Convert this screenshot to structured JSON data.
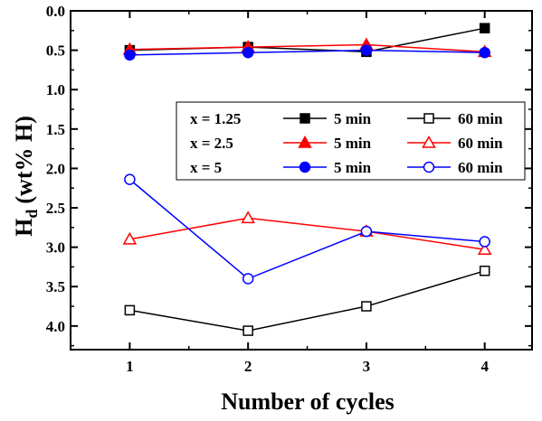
{
  "chart_data": {
    "type": "line",
    "title": "",
    "xlabel": "Number of cycles",
    "ylabel_main": "H",
    "ylabel_sub": "d",
    "ylabel_rest": "(wt% H)",
    "xlim": [
      0.5,
      4.4
    ],
    "ylim": [
      0.0,
      4.3
    ],
    "y_inverted": true,
    "x_ticks": [
      1,
      2,
      3,
      4
    ],
    "x_tick_labels": [
      "1",
      "2",
      "3",
      "4"
    ],
    "y_ticks": [
      0.0,
      0.5,
      1.0,
      1.5,
      2.0,
      2.5,
      3.0,
      3.5,
      4.0
    ],
    "y_tick_labels": [
      "0.0",
      "0.5",
      "1.0",
      "1.5",
      "2.0",
      "2.5",
      "3.0",
      "3.5",
      "4.0"
    ],
    "grid": false,
    "legend_position": "center-right",
    "series": [
      {
        "x_label": "x = 1.25",
        "name": "5 min",
        "color": "#000000",
        "marker": "square",
        "filled": true,
        "x": [
          1,
          2,
          3,
          4
        ],
        "y": [
          0.5,
          0.46,
          0.52,
          0.22
        ]
      },
      {
        "x_label": "x = 1.25",
        "name": "60 min",
        "color": "#000000",
        "marker": "square",
        "filled": false,
        "x": [
          1,
          2,
          3,
          4
        ],
        "y": [
          3.8,
          4.06,
          3.75,
          3.3
        ]
      },
      {
        "x_label": "x = 2.5",
        "name": "5 min",
        "color": "#ff0000",
        "marker": "triangle",
        "filled": true,
        "x": [
          1,
          2,
          3,
          4
        ],
        "y": [
          0.49,
          0.46,
          0.43,
          0.52
        ]
      },
      {
        "x_label": "x = 2.5",
        "name": "60 min",
        "color": "#ff0000",
        "marker": "triangle",
        "filled": false,
        "x": [
          1,
          2,
          3,
          4
        ],
        "y": [
          2.9,
          2.63,
          2.8,
          3.03
        ]
      },
      {
        "x_label": "x = 5",
        "name": "5 min",
        "color": "#0000ff",
        "marker": "circle",
        "filled": true,
        "x": [
          1,
          2,
          3,
          4
        ],
        "y": [
          0.56,
          0.53,
          0.5,
          0.53
        ]
      },
      {
        "x_label": "x = 5",
        "name": "60 min",
        "color": "#0000ff",
        "marker": "circle",
        "filled": false,
        "x": [
          1,
          2,
          3,
          4
        ],
        "y": [
          2.14,
          3.4,
          2.8,
          2.93
        ]
      }
    ]
  }
}
